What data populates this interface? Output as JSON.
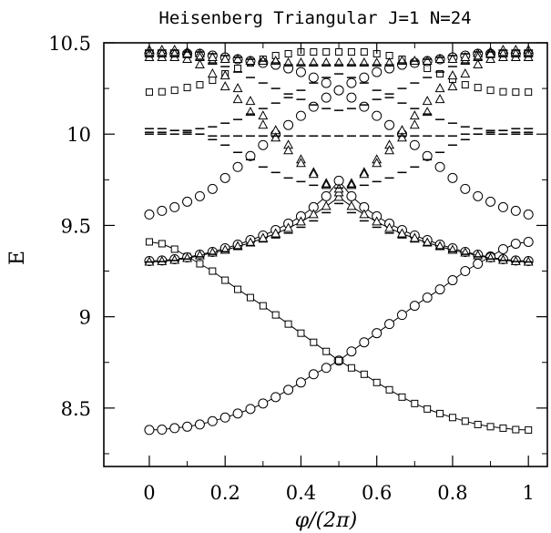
{
  "chart_data": {
    "type": "scatter",
    "title": "Heisenberg Triangular J=1 N=24",
    "xlabel": "φ/(2π)",
    "ylabel": "E",
    "xlim": [
      -0.12,
      1.05
    ],
    "ylim": [
      8.18,
      10.5
    ],
    "x_ticks": [
      0,
      0.2,
      0.4,
      0.6,
      0.8,
      1
    ],
    "x_tick_labels": [
      "0",
      "0.2",
      "0.4",
      "0.6",
      "0.8",
      "1"
    ],
    "y_ticks": [
      8.5,
      9,
      9.5,
      10,
      10.5
    ],
    "y_tick_labels": [
      "8.5",
      "9",
      "9.5",
      "10",
      "10.5"
    ],
    "grid": false,
    "legend": "none",
    "x": [
      0.0,
      0.0333,
      0.0667,
      0.1,
      0.1333,
      0.1667,
      0.2,
      0.2333,
      0.2667,
      0.3,
      0.3333,
      0.3667,
      0.4,
      0.4333,
      0.4667,
      0.5,
      0.5333,
      0.5667,
      0.6,
      0.6333,
      0.6667,
      0.7,
      0.7333,
      0.7667,
      0.8,
      0.8333,
      0.8667,
      0.9,
      0.9333,
      0.9667,
      1.0
    ],
    "series": [
      {
        "marker": "circle",
        "connected": true,
        "values": [
          8.38,
          8.382,
          8.39,
          8.398,
          8.41,
          8.428,
          8.448,
          8.47,
          8.495,
          8.525,
          8.56,
          8.6,
          8.64,
          8.685,
          8.72,
          8.76,
          8.81,
          8.86,
          8.91,
          8.96,
          9.01,
          9.06,
          9.105,
          9.15,
          9.2,
          9.25,
          9.29,
          9.33,
          9.37,
          9.4,
          9.41
        ]
      },
      {
        "marker": "square",
        "connected": true,
        "values": [
          9.41,
          9.4,
          9.37,
          9.33,
          9.29,
          9.25,
          9.2,
          9.15,
          9.105,
          9.06,
          9.01,
          8.96,
          8.91,
          8.86,
          8.81,
          8.76,
          8.72,
          8.685,
          8.64,
          8.6,
          8.56,
          8.525,
          8.495,
          8.47,
          8.448,
          8.428,
          8.41,
          8.398,
          8.39,
          8.382,
          8.38
        ]
      },
      {
        "marker": "circle",
        "connected": true,
        "values": [
          9.305,
          9.308,
          9.315,
          9.325,
          9.34,
          9.355,
          9.375,
          9.395,
          9.42,
          9.445,
          9.475,
          9.51,
          9.55,
          9.6,
          9.66,
          9.745,
          9.66,
          9.6,
          9.55,
          9.51,
          9.475,
          9.445,
          9.42,
          9.395,
          9.375,
          9.355,
          9.34,
          9.325,
          9.315,
          9.308,
          9.305
        ]
      },
      {
        "marker": "triangle",
        "connected": true,
        "values": [
          9.3,
          9.303,
          9.31,
          9.32,
          9.335,
          9.35,
          9.365,
          9.385,
          9.405,
          9.43,
          9.455,
          9.485,
          9.52,
          9.56,
          9.605,
          9.655,
          9.605,
          9.56,
          9.52,
          9.485,
          9.455,
          9.43,
          9.405,
          9.385,
          9.365,
          9.35,
          9.335,
          9.32,
          9.31,
          9.303,
          9.3
        ]
      },
      {
        "marker": "dash",
        "connected": false,
        "values": [
          9.3,
          9.302,
          9.308,
          9.316,
          9.328,
          9.342,
          9.356,
          9.372,
          9.39,
          9.41,
          9.432,
          9.458,
          9.49,
          9.525,
          9.57,
          9.62,
          9.57,
          9.525,
          9.49,
          9.458,
          9.432,
          9.41,
          9.39,
          9.372,
          9.356,
          9.342,
          9.328,
          9.316,
          9.308,
          9.302,
          9.3
        ]
      },
      {
        "marker": "square",
        "connected": false,
        "values": [
          10.23,
          10.232,
          10.24,
          10.255,
          10.27,
          10.295,
          10.33,
          10.36,
          10.39,
          10.41,
          10.43,
          10.44,
          10.45,
          10.45,
          10.45,
          10.45,
          10.45,
          10.45,
          10.44,
          10.43,
          10.41,
          10.39,
          10.36,
          10.33,
          10.3,
          10.27,
          10.255,
          10.24,
          10.232,
          10.23,
          10.23
        ]
      },
      {
        "marker": "circle",
        "connected": false,
        "values": [
          10.44,
          10.44,
          10.44,
          10.44,
          10.44,
          10.43,
          10.42,
          10.41,
          10.4,
          10.39,
          10.38,
          10.36,
          10.34,
          10.31,
          10.28,
          10.24,
          10.2,
          10.15,
          10.1,
          10.05,
          10.0,
          9.94,
          9.88,
          9.82,
          9.76,
          9.7,
          9.66,
          9.63,
          9.6,
          9.58,
          9.56
        ]
      },
      {
        "marker": "circle",
        "connected": false,
        "values": [
          9.56,
          9.58,
          9.6,
          9.63,
          9.66,
          9.7,
          9.76,
          9.82,
          9.88,
          9.94,
          10.0,
          10.05,
          10.1,
          10.15,
          10.2,
          10.24,
          10.28,
          10.31,
          10.34,
          10.36,
          10.38,
          10.39,
          10.4,
          10.41,
          10.42,
          10.43,
          10.44,
          10.44,
          10.44,
          10.44,
          10.44
        ]
      },
      {
        "marker": "triangle",
        "connected": false,
        "values": [
          10.46,
          10.46,
          10.46,
          10.45,
          10.44,
          10.4,
          10.32,
          10.25,
          10.18,
          10.1,
          10.02,
          9.94,
          9.86,
          9.79,
          9.73,
          9.68,
          9.73,
          9.79,
          9.86,
          9.94,
          10.02,
          10.1,
          10.18,
          10.25,
          10.32,
          10.4,
          10.44,
          10.45,
          10.46,
          10.46,
          10.46
        ]
      },
      {
        "marker": "triangle",
        "connected": false,
        "values": [
          10.42,
          10.42,
          10.42,
          10.41,
          10.38,
          10.33,
          10.26,
          10.19,
          10.12,
          10.05,
          9.98,
          9.91,
          9.84,
          9.78,
          9.72,
          9.7,
          9.72,
          9.78,
          9.84,
          9.91,
          9.98,
          10.05,
          10.12,
          10.19,
          10.26,
          10.33,
          10.38,
          10.41,
          10.42,
          10.42,
          10.42
        ]
      },
      {
        "marker": "triangle",
        "connected": false,
        "values": [
          10.44,
          10.44,
          10.44,
          10.44,
          10.42,
          10.42,
          10.41,
          10.41,
          10.4,
          10.4,
          10.4,
          10.39,
          10.39,
          10.39,
          10.39,
          10.39,
          10.39,
          10.39,
          10.39,
          10.39,
          10.4,
          10.4,
          10.4,
          10.41,
          10.41,
          10.42,
          10.42,
          10.44,
          10.44,
          10.44,
          10.44
        ]
      },
      {
        "marker": "dash",
        "connected": false,
        "values": [
          10.46,
          10.46,
          10.46,
          10.45,
          10.45,
          10.44,
          10.43,
          10.42,
          10.41,
          10.4,
          10.39,
          10.38,
          10.38,
          10.38,
          10.38,
          10.38,
          10.38,
          10.38,
          10.38,
          10.38,
          10.39,
          10.4,
          10.41,
          10.42,
          10.43,
          10.44,
          10.45,
          10.45,
          10.46,
          10.46,
          10.46
        ]
      },
      {
        "marker": "dash",
        "connected": false,
        "values": [
          10.43,
          10.43,
          10.43,
          10.42,
          10.41,
          10.39,
          10.37,
          10.34,
          10.31,
          10.28,
          10.25,
          10.22,
          10.19,
          10.16,
          10.14,
          10.13,
          10.14,
          10.16,
          10.19,
          10.22,
          10.25,
          10.28,
          10.31,
          10.34,
          10.37,
          10.39,
          10.41,
          10.42,
          10.43,
          10.43,
          10.43
        ]
      },
      {
        "marker": "dash",
        "connected": false,
        "values": [
          10.03,
          10.03,
          10.02,
          10.01,
          10.0,
          9.97,
          9.94,
          9.9,
          9.86,
          9.82,
          9.79,
          9.76,
          9.74,
          9.72,
          9.71,
          9.705,
          9.71,
          9.72,
          9.74,
          9.76,
          9.79,
          9.82,
          9.86,
          9.9,
          9.94,
          9.97,
          10.0,
          10.01,
          10.02,
          10.03,
          10.03
        ]
      },
      {
        "marker": "dash",
        "connected": false,
        "values": [
          10.0,
          10.0,
          10.0,
          10.0,
          10.0,
          9.99,
          9.99,
          9.99,
          9.99,
          9.99,
          9.99,
          9.99,
          9.99,
          9.99,
          9.99,
          9.99,
          9.99,
          9.99,
          9.99,
          9.99,
          9.99,
          9.99,
          9.99,
          9.99,
          9.99,
          10.0,
          10.0,
          10.0,
          10.0,
          10.0,
          10.0
        ]
      },
      {
        "marker": "dash",
        "connected": false,
        "values": [
          10.01,
          10.01,
          10.02,
          10.02,
          10.03,
          10.04,
          10.06,
          10.08,
          10.11,
          10.14,
          10.17,
          10.2,
          10.24,
          10.28,
          10.31,
          10.33,
          10.31,
          10.28,
          10.24,
          10.2,
          10.17,
          10.14,
          10.11,
          10.08,
          10.06,
          10.04,
          10.03,
          10.02,
          10.02,
          10.01,
          10.01
        ]
      }
    ]
  }
}
